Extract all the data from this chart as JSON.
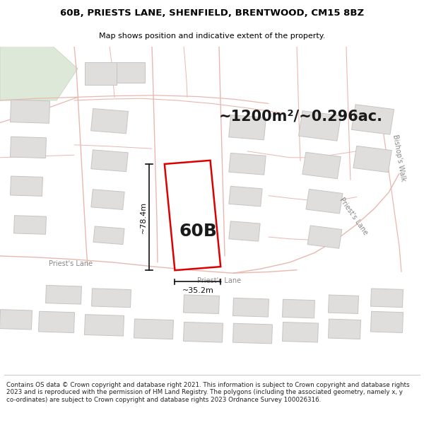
{
  "title_line1": "60B, PRIESTS LANE, SHENFIELD, BRENTWOOD, CM15 8BZ",
  "title_line2": "Map shows position and indicative extent of the property.",
  "area_text": "~1200m²/~0.296ac.",
  "label_60b": "60B",
  "dim_width": "~35.2m",
  "dim_height": "~78.4m",
  "footer_text": "Contains OS data © Crown copyright and database right 2021. This information is subject to Crown copyright and database rights 2023 and is reproduced with the permission of HM Land Registry. The polygons (including the associated geometry, namely x, y co-ordinates) are subject to Crown copyright and database rights 2023 Ordnance Survey 100026316.",
  "map_bg": "#f7f5f2",
  "road_color": "#e8b8b0",
  "plot_fill": "#ffffff",
  "plot_stroke": "#dd0000",
  "building_fill": "#e0dedd",
  "building_stroke": "#c8c4c0",
  "green_fill": "#dde8d8",
  "green_stroke": "#c0d4b8",
  "white": "#ffffff",
  "title_fontsize": 9.5,
  "subtitle_fontsize": 8,
  "area_fontsize": 15,
  "label_fontsize": 18,
  "dim_fontsize": 8,
  "road_label_fontsize": 7
}
